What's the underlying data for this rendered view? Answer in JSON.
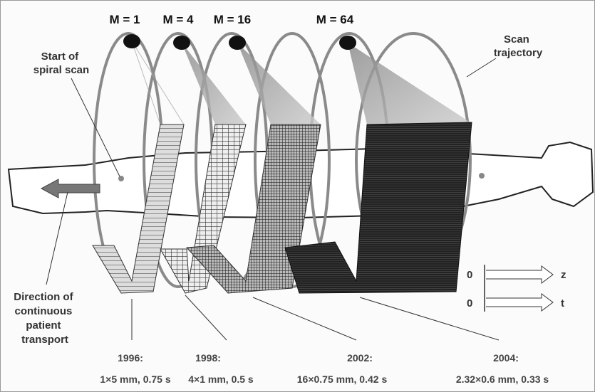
{
  "detectors": [
    {
      "label": "M = 1",
      "year": "1996:",
      "spec": "1×5 mm, 0.75 s"
    },
    {
      "label": "M = 4",
      "year": "1998:",
      "spec": "4×1 mm, 0.5 s"
    },
    {
      "label": "M = 16",
      "year": "2002:",
      "spec": "16×0.75 mm, 0.42 s"
    },
    {
      "label": "M = 64",
      "year": "2004:",
      "spec": "2.32×0.6 mm, 0.33 s"
    }
  ],
  "annotations": {
    "scan_trajectory": [
      "Scan",
      "trajectory"
    ],
    "start": [
      "Start of",
      "spiral scan"
    ],
    "direction": [
      "Direction of",
      "continuous",
      "patient",
      "transport"
    ]
  },
  "axes": {
    "z_origin": "0",
    "z_label": "z",
    "t_origin": "0",
    "t_label": "t"
  }
}
